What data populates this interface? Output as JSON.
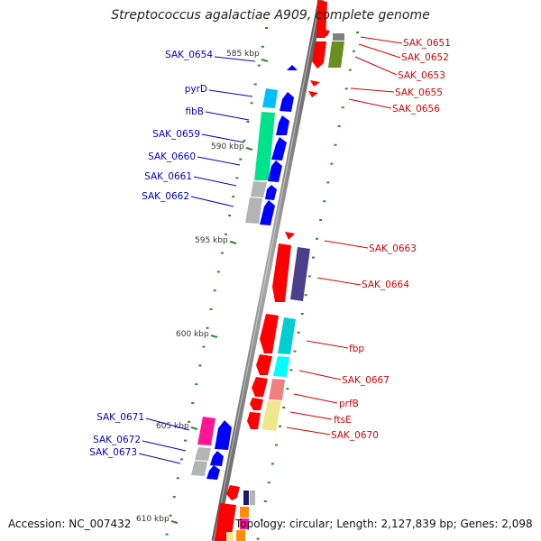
{
  "title": "Streptococcus agalactiae A909, complete genome",
  "footer": {
    "accession": "Accession: NC_007432",
    "topology": "Topology: circular; Length: 2,127,839 bp; Genes: 2,098"
  },
  "colors": {
    "plus_label": "#0000cc",
    "minus_label": "#dd0000",
    "tick": "#2e8b2e",
    "backbone": "#808080"
  },
  "kbp_ticks": [
    {
      "kbp": 585,
      "label": "585 kbp"
    },
    {
      "kbp": 590,
      "label": "590 kbp"
    },
    {
      "kbp": 595,
      "label": "595 kbp"
    },
    {
      "kbp": 600,
      "label": "600 kbp"
    },
    {
      "kbp": 605,
      "label": "605 kbp"
    },
    {
      "kbp": 610,
      "label": "610 kbp"
    }
  ],
  "plus_strand_labels": [
    "SAK_0654",
    "pyrD",
    "fibB",
    "SAK_0659",
    "SAK_0660",
    "SAK_0661",
    "SAK_0662",
    "SAK_0671",
    "SAK_0672",
    "SAK_0673"
  ],
  "minus_strand_labels": [
    "SAK_0651",
    "SAK_0652",
    "SAK_0653",
    "SAK_0655",
    "SAK_0656",
    "SAK_0663",
    "SAK_0664",
    "fbp",
    "SAK_0667",
    "prfB",
    "ftsE",
    "SAK_0670"
  ],
  "gene_category_colors": [
    "#ff0000",
    "#0000ff",
    "#00bfff",
    "#00e38a",
    "#b4b4b4",
    "#6b8e23",
    "#4b3f8c",
    "#00ced1",
    "#f08080",
    "#f0e68c",
    "#ff1493",
    "#ff8c00",
    "#191970"
  ]
}
